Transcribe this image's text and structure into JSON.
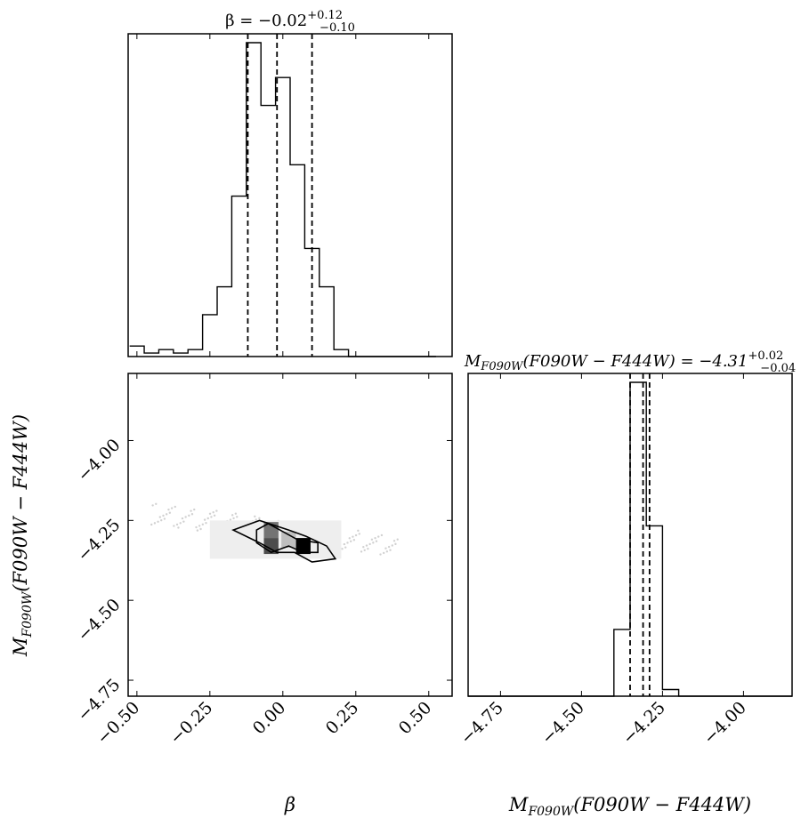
{
  "chart_data": [
    {
      "type": "histogram",
      "panel": "beta-marginal",
      "title": {
        "main": "β = −0.02",
        "sup": "+0.12",
        "sub": "−0.10"
      },
      "bin_edges": [
        -0.525,
        -0.475,
        -0.425,
        -0.375,
        -0.325,
        -0.275,
        -0.225,
        -0.175,
        -0.125,
        -0.075,
        -0.025,
        0.025,
        0.075,
        0.125,
        0.175,
        0.225,
        0.275,
        0.325,
        0.375,
        0.425,
        0.475,
        0.525
      ],
      "counts": [
        3,
        1,
        2,
        1,
        2,
        12,
        20,
        46,
        90,
        72,
        80,
        55,
        31,
        20,
        2,
        0,
        0,
        0,
        0,
        0,
        0
      ],
      "quantile_lines": [
        -0.12,
        -0.02,
        0.1
      ],
      "xlim": [
        -0.53,
        0.58
      ]
    },
    {
      "type": "histogram",
      "panel": "magnitude-marginal",
      "title": {
        "main": "M",
        "main_sub": "F090W",
        "main_tail": "(F090W − F444W) = −4.31",
        "sup": "+0.02",
        "sub": "−0.04"
      },
      "bin_edges": [
        -4.85,
        -4.8,
        -4.75,
        -4.7,
        -4.65,
        -4.6,
        -4.55,
        -4.5,
        -4.45,
        -4.4,
        -4.35,
        -4.3,
        -4.25,
        -4.2,
        -4.15,
        -4.1,
        -4.05,
        -4.0,
        -3.95,
        -3.9,
        -3.85
      ],
      "counts": [
        0,
        0,
        0,
        0,
        0,
        0,
        0,
        0,
        0,
        20,
        94,
        51,
        2,
        0,
        0,
        0,
        0,
        0,
        0,
        0
      ],
      "quantile_lines": [
        -4.35,
        -4.31,
        -4.29
      ],
      "xlim": [
        -4.85,
        -3.85
      ],
      "xticks": [
        "−4.75",
        "−4.50",
        "−4.25",
        "−4.00"
      ],
      "xlabel": {
        "main": "M",
        "sub": "F090W",
        "tail": "(F090W − F444W)"
      }
    },
    {
      "type": "scatter",
      "panel": "joint-2d",
      "xlim": [
        -0.53,
        0.58
      ],
      "ylim": [
        -4.8,
        -3.79
      ],
      "xticks": [
        "−0.50",
        "−0.25",
        "0.00",
        "0.25",
        "0.50"
      ],
      "yticks": [
        "−4.00",
        "−4.25",
        "−4.50",
        "−4.75"
      ],
      "xlabel": "β",
      "ylabel": {
        "main": "M",
        "sub": "F090W",
        "tail": "(F090W − F444W)"
      },
      "dense_cells": [
        {
          "x": -0.04,
          "y": -4.28,
          "level": 0.55
        },
        {
          "x": -0.04,
          "y": -4.33,
          "level": 0.7
        },
        {
          "x": 0.07,
          "y": -4.33,
          "level": 1.0
        },
        {
          "x": 0.02,
          "y": -4.31,
          "level": 0.25
        }
      ],
      "contours": [
        [
          [
            -0.17,
            -4.28
          ],
          [
            -0.08,
            -4.25
          ],
          [
            0.02,
            -4.28
          ],
          [
            0.08,
            -4.3
          ],
          [
            0.15,
            -4.33
          ],
          [
            0.18,
            -4.37
          ],
          [
            0.1,
            -4.38
          ],
          [
            0.04,
            -4.35
          ],
          [
            -0.02,
            -4.35
          ],
          [
            -0.08,
            -4.32
          ],
          [
            -0.17,
            -4.28
          ]
        ],
        [
          [
            -0.09,
            -4.28
          ],
          [
            -0.05,
            -4.26
          ],
          [
            -0.01,
            -4.28
          ],
          [
            0.05,
            -4.31
          ],
          [
            0.12,
            -4.32
          ],
          [
            0.12,
            -4.35
          ],
          [
            0.07,
            -4.35
          ],
          [
            0.02,
            -4.33
          ],
          [
            -0.04,
            -4.35
          ],
          [
            -0.09,
            -4.32
          ],
          [
            -0.09,
            -4.28
          ]
        ]
      ]
    }
  ]
}
